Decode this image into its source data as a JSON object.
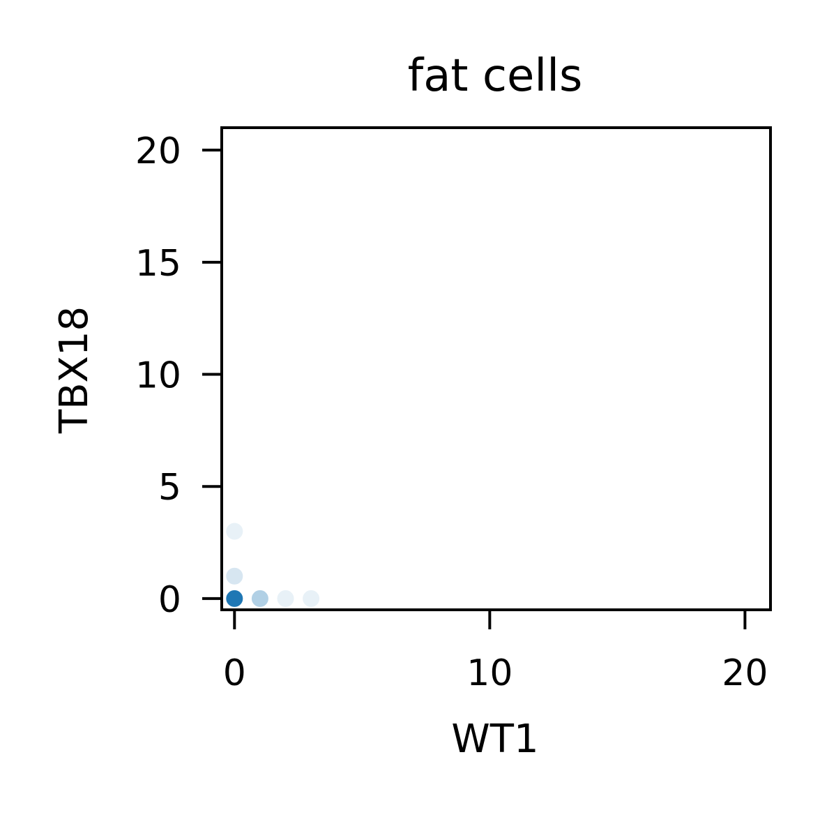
{
  "chart_data": {
    "type": "scatter",
    "title": "fat cells",
    "xlabel": "WT1",
    "ylabel": "TBX18",
    "xlim": [
      -0.5,
      21
    ],
    "ylim": [
      -0.5,
      21
    ],
    "xticks": [
      0,
      10,
      20
    ],
    "yticks": [
      0,
      5,
      10,
      15,
      20
    ],
    "xtick_labels": [
      "0",
      "10",
      "20"
    ],
    "ytick_labels": [
      "0",
      "5",
      "10",
      "15",
      "20"
    ],
    "grid": false,
    "marker_color": "#1f77b4",
    "points": [
      {
        "x": 0,
        "y": 0,
        "alpha": 1.0
      },
      {
        "x": 1,
        "y": 0,
        "alpha": 0.35
      },
      {
        "x": 2,
        "y": 0,
        "alpha": 0.1
      },
      {
        "x": 3,
        "y": 0,
        "alpha": 0.1
      },
      {
        "x": 0,
        "y": 1,
        "alpha": 0.18
      },
      {
        "x": 0,
        "y": 3,
        "alpha": 0.1
      }
    ]
  }
}
